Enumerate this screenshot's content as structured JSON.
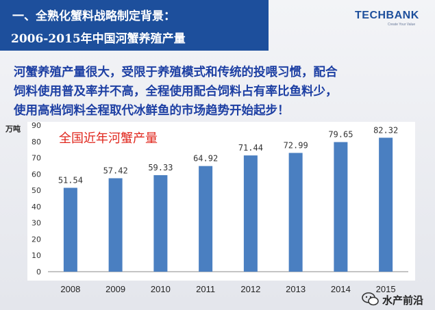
{
  "header": {
    "line1": "一、全熟化蟹料战略制定背景：",
    "line2": "2006-2015年中国河蟹养殖产量"
  },
  "logo": {
    "text": "TECHBANK",
    "tagline": "Create Your Value"
  },
  "headline": {
    "lines": [
      "河蟹养殖产量很大，受限于养殖模式和传统的投喂习惯，配合",
      "饲料使用普及率并不高，全程使用配合饲料占有率比鱼料少，",
      "使用高档饲料全程取代冰鲜鱼的市场趋势开始起步！"
    ]
  },
  "watermark": {
    "text": "水产前沿",
    "icon": "wechat-icon"
  },
  "colors": {
    "banner": "#1d4f9c",
    "headline": "#1d3fa3",
    "bar": "#4a7fc1",
    "chart_title": "#e0261c"
  },
  "chart_data": {
    "type": "bar",
    "title": "全国近年河蟹产量",
    "ylabel": "万吨",
    "xlabel": "",
    "categories": [
      "2008",
      "2009",
      "2010",
      "2011",
      "2012",
      "2013",
      "2014",
      "2015"
    ],
    "values": [
      51.54,
      57.42,
      59.33,
      64.92,
      71.44,
      72.99,
      79.65,
      82.32
    ],
    "value_labels": [
      "51.54",
      "57.42",
      "59.33",
      "64.92",
      "71.44",
      "72.99",
      "79.65",
      "82.32"
    ],
    "ylim": [
      0,
      90
    ],
    "yticks": [
      0,
      10,
      20,
      30,
      40,
      50,
      60,
      70,
      80,
      90
    ],
    "grid": false,
    "legend": "none"
  }
}
